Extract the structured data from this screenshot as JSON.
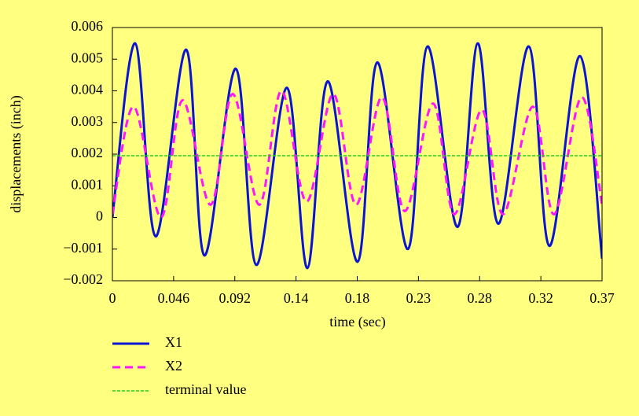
{
  "chart_data": {
    "type": "line",
    "xlabel": "time (sec)",
    "ylabel": "displacements (inch)",
    "xlim": [
      0,
      0.37
    ],
    "xticks": [
      0,
      {
        "value": 0.04625,
        "label": "0.046"
      },
      {
        "value": 0.0925,
        "label": "0.092"
      },
      {
        "value": 0.13875,
        "label": "0.14"
      },
      {
        "value": 0.185,
        "label": "0.18"
      },
      {
        "value": 0.23125,
        "label": "0.23"
      },
      {
        "value": 0.2775,
        "label": "0.28"
      },
      {
        "value": 0.32375,
        "label": "0.32"
      },
      0.37
    ],
    "ylim": [
      -0.002,
      0.006
    ],
    "yticks": [
      {
        "value": -0.002,
        "label": "−0.002"
      },
      {
        "value": -0.001,
        "label": "−0.001"
      },
      0,
      0.001,
      0.002,
      0.003,
      0.004,
      0.005,
      0.006
    ],
    "series": [
      {
        "name": "X1",
        "color": "#0a14d2",
        "dash": "solid",
        "x": [
          0,
          0.0172,
          0.0327,
          0.0558,
          0.0695,
          0.0932,
          0.1087,
          0.1318,
          0.1473,
          0.1627,
          0.1853,
          0.2001,
          0.2233,
          0.2381,
          0.2607,
          0.2761,
          0.2916,
          0.3147,
          0.3302,
          0.3533,
          0.37
        ],
        "values": [
          0,
          0.0055,
          -0.0006,
          0.0053,
          -0.0012,
          0.0047,
          -0.0015,
          0.0041,
          -0.0016,
          0.0043,
          -0.0014,
          0.0049,
          -0.001,
          0.0054,
          -0.0003,
          0.0055,
          -0.0002,
          0.0054,
          -0.0009,
          0.0051,
          -0.0013
        ]
      },
      {
        "name": "X2",
        "color": "#ff14ff",
        "dash": "dashed",
        "x": [
          0,
          0.016,
          0.0368,
          0.0529,
          0.0742,
          0.0909,
          0.111,
          0.1277,
          0.1467,
          0.1669,
          0.1841,
          0.2037,
          0.2209,
          0.2423,
          0.2583,
          0.2791,
          0.2951,
          0.3177,
          0.3337,
          0.3545,
          0.37
        ],
        "values": [
          0.0001,
          0.0035,
          0,
          0.0037,
          0.0004,
          0.0039,
          0.0004,
          0.004,
          0.0005,
          0.0039,
          0.0004,
          0.0038,
          0.0002,
          0.0036,
          0.0001,
          0.0034,
          0.0001,
          0.0035,
          0.0001,
          0.0038,
          0.0004
        ]
      },
      {
        "name": "terminal value",
        "color": "#1ed21e",
        "dash": "dotted",
        "x": [
          0,
          0.37
        ],
        "values": [
          0.00195,
          0.00195
        ]
      }
    ]
  }
}
